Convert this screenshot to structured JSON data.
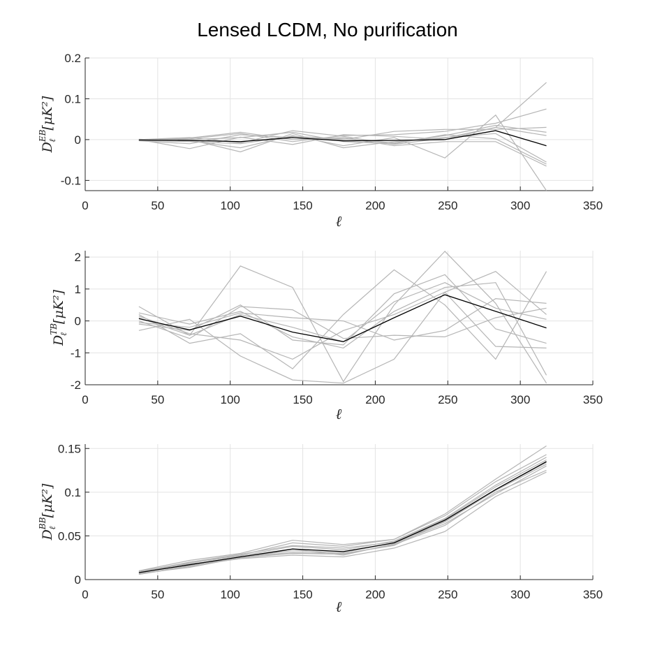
{
  "figure": {
    "title": "Lensed LCDM, No purification"
  },
  "chart_data": [
    {
      "type": "line",
      "ylabel": {
        "base": "D",
        "sup": "EB",
        "sub": "ℓ",
        "unit": "[μK²]"
      },
      "xlabel": "ℓ",
      "xlim": [
        0,
        350
      ],
      "ylim": [
        -0.125,
        0.2
      ],
      "xticks": [
        0,
        50,
        100,
        150,
        200,
        250,
        300,
        350
      ],
      "yticks": [
        -0.1,
        0,
        0.1,
        0.2
      ],
      "ytick_labels": [
        "-0.1",
        "0",
        "0.1",
        "0.2"
      ],
      "grid": true,
      "x": [
        37,
        72,
        107,
        143,
        178,
        213,
        248,
        283,
        318
      ],
      "series": [
        {
          "values": [
            0.0,
            0.005,
            -0.008,
            0.022,
            0.008,
            -0.012,
            0.004,
            0.03,
            0.14
          ],
          "role": "simulation"
        },
        {
          "values": [
            -0.002,
            0.002,
            0.015,
            -0.005,
            0.01,
            0.012,
            0.02,
            0.04,
            0.075
          ],
          "role": "simulation"
        },
        {
          "values": [
            0.001,
            -0.003,
            -0.02,
            0.01,
            -0.015,
            0.005,
            -0.045,
            0.06,
            -0.125
          ],
          "role": "simulation"
        },
        {
          "values": [
            -0.003,
            -0.01,
            0.012,
            0.005,
            0.0,
            0.02,
            0.025,
            0.025,
            0.03
          ],
          "role": "simulation"
        },
        {
          "values": [
            0.0,
            0.0,
            -0.03,
            0.015,
            -0.02,
            -0.005,
            0.005,
            0.015,
            -0.055
          ],
          "role": "simulation"
        },
        {
          "values": [
            -0.002,
            0.004,
            0.018,
            0.0,
            0.005,
            -0.015,
            -0.005,
            -0.005,
            -0.065
          ],
          "role": "simulation"
        },
        {
          "values": [
            0.0,
            -0.022,
            0.006,
            -0.012,
            0.012,
            0.008,
            0.0,
            0.03,
            0.01
          ],
          "role": "simulation"
        },
        {
          "values": [
            -0.001,
            0.0,
            0.005,
            0.018,
            -0.005,
            -0.01,
            0.012,
            0.002,
            -0.06
          ],
          "role": "simulation"
        },
        {
          "values": [
            -0.002,
            -0.005,
            -0.01,
            0.008,
            0.002,
            -0.008,
            0.01,
            0.035,
            0.018
          ],
          "role": "simulation"
        },
        {
          "values": [
            -0.001,
            -0.002,
            -0.005,
            0.005,
            -0.003,
            -0.002,
            0.0,
            0.022,
            -0.015
          ],
          "role": "mean"
        }
      ]
    },
    {
      "type": "line",
      "ylabel": {
        "base": "D",
        "sup": "TB",
        "sub": "ℓ",
        "unit": "[μK²]"
      },
      "xlabel": "ℓ",
      "xlim": [
        0,
        350
      ],
      "ylim": [
        -2,
        2.2
      ],
      "xticks": [
        0,
        50,
        100,
        150,
        200,
        250,
        300,
        350
      ],
      "yticks": [
        -2,
        -1,
        0,
        1,
        2
      ],
      "ytick_labels": [
        "-2",
        "-1",
        "0",
        "1",
        "2"
      ],
      "grid": true,
      "x": [
        37,
        72,
        107,
        143,
        178,
        213,
        248,
        283,
        318
      ],
      "series": [
        {
          "values": [
            0.45,
            -0.45,
            1.72,
            1.05,
            -1.9,
            0.5,
            2.18,
            0.55,
            -1.95
          ],
          "role": "simulation"
        },
        {
          "values": [
            -0.3,
            0.05,
            -1.1,
            -1.85,
            -1.95,
            -1.2,
            0.9,
            1.55,
            0.2
          ],
          "role": "simulation"
        },
        {
          "values": [
            0.2,
            -0.7,
            -0.4,
            -1.5,
            0.2,
            1.6,
            0.5,
            -1.2,
            1.55
          ],
          "role": "simulation"
        },
        {
          "values": [
            0.0,
            -0.55,
            0.45,
            0.35,
            -0.55,
            -0.45,
            -0.5,
            0.1,
            0.4
          ],
          "role": "simulation"
        },
        {
          "values": [
            0.25,
            -0.1,
            0.3,
            -0.5,
            -0.85,
            0.3,
            1.05,
            1.2,
            -1.7
          ],
          "role": "simulation"
        },
        {
          "values": [
            -0.1,
            -0.3,
            0.5,
            -0.6,
            -0.75,
            0.85,
            1.45,
            -0.25,
            -0.7
          ],
          "role": "simulation"
        },
        {
          "values": [
            0.15,
            -0.4,
            -0.6,
            -1.2,
            -0.3,
            0.2,
            0.9,
            -0.8,
            -0.85
          ],
          "role": "simulation"
        },
        {
          "values": [
            -0.05,
            -0.2,
            0.25,
            0.1,
            0.0,
            -0.6,
            -0.3,
            0.7,
            0.55
          ],
          "role": "simulation"
        },
        {
          "values": [
            0.1,
            -0.45,
            0.2,
            -0.2,
            -0.65,
            0.6,
            1.2,
            0.4,
            0.05
          ],
          "role": "simulation"
        },
        {
          "values": [
            0.07,
            -0.28,
            0.15,
            -0.35,
            -0.65,
            0.1,
            0.82,
            0.3,
            -0.22
          ],
          "role": "mean"
        }
      ]
    },
    {
      "type": "line",
      "ylabel": {
        "base": "D",
        "sup": "BB",
        "sub": "ℓ",
        "unit": "[μK²]"
      },
      "xlabel": "ℓ",
      "xlim": [
        0,
        350
      ],
      "ylim": [
        0,
        0.155
      ],
      "xticks": [
        0,
        50,
        100,
        150,
        200,
        250,
        300,
        350
      ],
      "yticks": [
        0,
        0.05,
        0.1,
        0.15
      ],
      "ytick_labels": [
        "0",
        "0.05",
        "0.1",
        "0.15"
      ],
      "grid": true,
      "x": [
        37,
        72,
        107,
        143,
        178,
        213,
        248,
        283,
        318
      ],
      "series": [
        {
          "values": [
            0.01,
            0.022,
            0.03,
            0.045,
            0.04,
            0.046,
            0.075,
            0.115,
            0.153
          ],
          "role": "simulation"
        },
        {
          "values": [
            0.006,
            0.016,
            0.024,
            0.028,
            0.026,
            0.036,
            0.055,
            0.095,
            0.123
          ],
          "role": "simulation"
        },
        {
          "values": [
            0.008,
            0.019,
            0.027,
            0.038,
            0.034,
            0.044,
            0.07,
            0.108,
            0.14
          ],
          "role": "simulation"
        },
        {
          "values": [
            0.007,
            0.014,
            0.025,
            0.03,
            0.029,
            0.04,
            0.062,
            0.1,
            0.125
          ],
          "role": "simulation"
        },
        {
          "values": [
            0.009,
            0.02,
            0.028,
            0.042,
            0.038,
            0.046,
            0.073,
            0.112,
            0.143
          ],
          "role": "simulation"
        },
        {
          "values": [
            0.008,
            0.017,
            0.026,
            0.033,
            0.031,
            0.042,
            0.066,
            0.102,
            0.132
          ],
          "role": "simulation"
        },
        {
          "values": [
            0.01,
            0.018,
            0.024,
            0.035,
            0.028,
            0.041,
            0.064,
            0.098,
            0.13
          ],
          "role": "simulation"
        },
        {
          "values": [
            0.007,
            0.02,
            0.029,
            0.039,
            0.036,
            0.043,
            0.069,
            0.106,
            0.137
          ],
          "role": "simulation"
        },
        {
          "values": [
            0.006,
            0.015,
            0.026,
            0.031,
            0.03,
            0.039,
            0.067,
            0.103,
            0.134
          ],
          "role": "simulation"
        },
        {
          "values": [
            0.008,
            0.017,
            0.026,
            0.035,
            0.032,
            0.042,
            0.068,
            0.103,
            0.135
          ],
          "role": "mean"
        }
      ]
    }
  ]
}
